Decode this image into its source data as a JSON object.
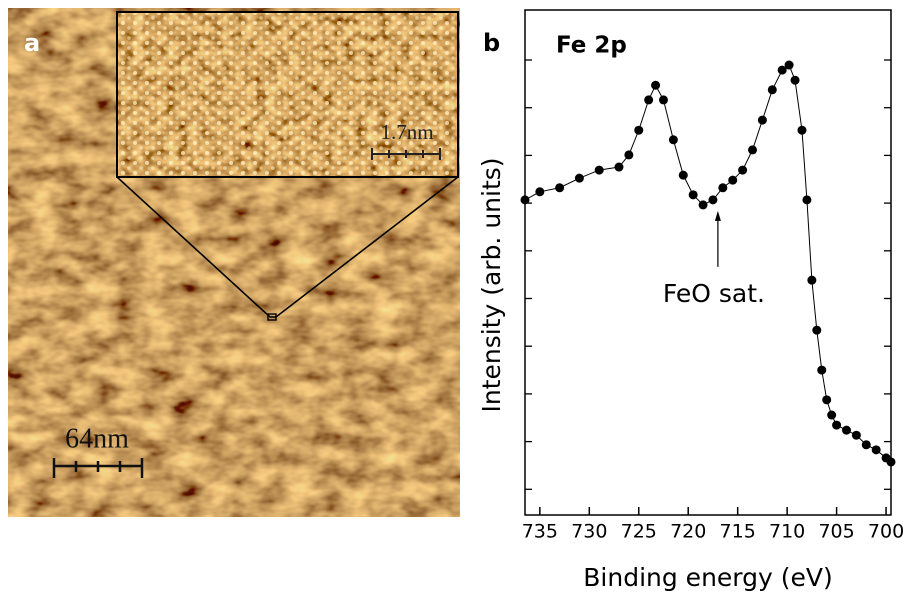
{
  "image_panel": {
    "label": "a",
    "scale_bar": "64nm",
    "inset_scale_bar": "1.7nm"
  },
  "chart_data": {
    "type": "scatter",
    "panel_label": "b",
    "title": "Fe 2p",
    "x_label": "Binding energy (eV)",
    "y_label": "Intensity (arb. units)",
    "annotation": {
      "text": "FeO sat.",
      "x": 717,
      "y": 63
    },
    "color": "#000000",
    "x": [
      736.5,
      735,
      733,
      731,
      729,
      727,
      726,
      725,
      724,
      723.3,
      722.5,
      721.5,
      720.5,
      719.5,
      718.5,
      717.5,
      716.5,
      715.5,
      714.5,
      713.5,
      712.5,
      711.5,
      710.5,
      709.8,
      709.2,
      708.5,
      708,
      707.5,
      707,
      706.5,
      706,
      705.5,
      705,
      704,
      703,
      702,
      701,
      700,
      699.5
    ],
    "values": [
      62.4,
      64.0,
      64.8,
      66.7,
      68.3,
      68.9,
      71.3,
      76.2,
      82.2,
      85.1,
      82.2,
      74.3,
      67.3,
      63.4,
      61.4,
      62.4,
      64.8,
      66.3,
      68.3,
      72.3,
      78.2,
      84.2,
      88.1,
      89.1,
      86.1,
      76.2,
      62.4,
      46.5,
      36.6,
      28.7,
      22.8,
      19.8,
      17.8,
      16.8,
      15.8,
      13.9,
      12.9,
      11.3,
      10.5
    ],
    "xlim": [
      736.5,
      699.5
    ],
    "xticks": [
      735,
      730,
      725,
      720,
      715,
      710,
      705,
      700
    ],
    "ylim": [
      0,
      100
    ]
  }
}
